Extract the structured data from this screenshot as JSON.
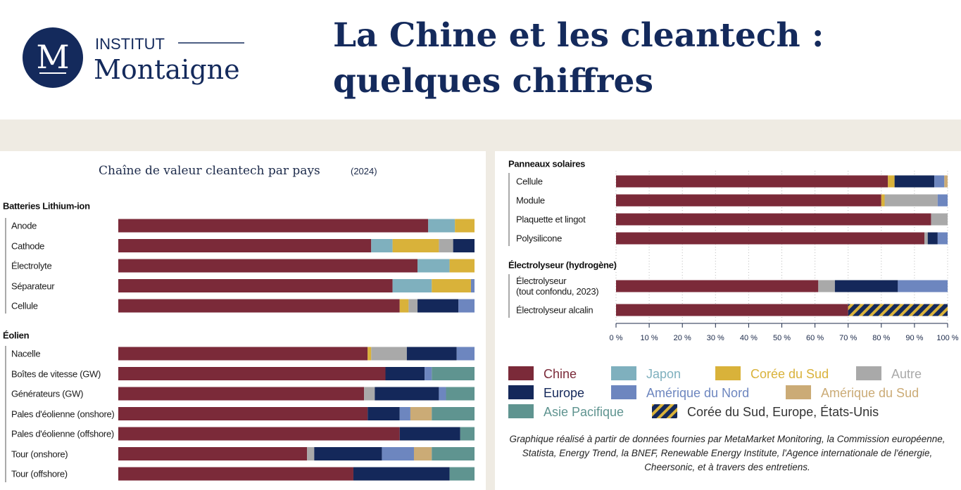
{
  "header": {
    "logo_letter": "M",
    "logo_top": "INSTITUT",
    "logo_bottom": "Montaigne",
    "title_line1": "La Chine et les cleantech :",
    "title_line2": "quelques chiffres"
  },
  "chart_data": {
    "type": "bar",
    "orientation": "horizontal",
    "stacked": true,
    "title": "Chaîne de valeur cleantech par pays",
    "subtitle": "(2024)",
    "groups": [
      {
        "name": "Batteries Lithium-ion",
        "categories": [
          "Anode",
          "Cathode",
          "Électrolyte",
          "Séparateur",
          "Cellule"
        ]
      },
      {
        "name": "Éolien",
        "categories": [
          "Nacelle",
          "Boîtes de vitesse (GW)",
          "Générateurs (GW)",
          "Pales d'éolienne (onshore)",
          "Pales d'éolienne (offshore)",
          "Tour (onshore)",
          "Tour (offshore)"
        ]
      },
      {
        "name": "Panneaux solaires",
        "categories": [
          "Cellule",
          "Module",
          "Plaquette et lingot",
          "Polysilicone"
        ]
      },
      {
        "name": "Électrolyseur (hydrogène)",
        "categories": [
          "Électrolyseur\n(tout confondu, 2023)",
          "Électrolyseur alcalin"
        ]
      }
    ],
    "series": [
      {
        "name": "Chine",
        "color": "#7b2a39",
        "values": [
          87,
          71,
          84,
          77,
          79,
          70,
          75,
          69,
          70,
          79,
          53,
          66,
          82,
          80,
          95,
          93,
          61,
          70
        ]
      },
      {
        "name": "Japon",
        "color": "#7fb0be",
        "values": [
          7.5,
          6,
          9,
          11,
          0,
          0,
          0,
          0,
          0,
          0,
          0,
          0,
          0,
          0,
          0,
          0,
          0,
          0
        ]
      },
      {
        "name": "Corée du Sud",
        "color": "#d9b23a",
        "values": [
          5.5,
          13,
          7,
          11,
          2.5,
          1,
          0,
          0,
          0,
          0,
          0,
          0,
          2,
          1,
          0,
          0,
          0,
          0
        ]
      },
      {
        "name": "Autre",
        "color": "#a9a9a9",
        "values": [
          0,
          4,
          0,
          0,
          2.5,
          10,
          0,
          3,
          0,
          0,
          2,
          0,
          0,
          16,
          5,
          1,
          5,
          0
        ]
      },
      {
        "name": "Europe",
        "color": "#14285a",
        "values": [
          0,
          6,
          0,
          0,
          11.5,
          14,
          11,
          18,
          9,
          17,
          19,
          27,
          12,
          0,
          0,
          3,
          19,
          0
        ]
      },
      {
        "name": "Amérique du Nord",
        "color": "#6d86bf",
        "values": [
          0,
          0,
          0,
          1,
          4.5,
          5,
          2,
          2,
          3,
          0,
          9,
          0,
          3,
          3,
          0,
          3,
          15,
          0
        ]
      },
      {
        "name": "Amérique du Sud",
        "color": "#cbab76",
        "values": [
          0,
          0,
          0,
          0,
          0,
          0,
          0,
          0,
          6,
          0,
          5,
          0,
          1,
          0,
          0,
          0,
          0,
          0
        ]
      },
      {
        "name": "Asie Pacifique",
        "color": "#5f9490",
        "values": [
          0,
          0,
          0,
          0,
          0,
          0,
          12,
          8,
          12,
          4,
          12,
          7,
          0,
          0,
          0,
          0,
          0,
          0
        ]
      },
      {
        "name": "Corée du Sud, Europe, États-Unis",
        "color": "#14285a",
        "hatch_color": "#d9b23a",
        "values": [
          0,
          0,
          0,
          0,
          0,
          0,
          0,
          0,
          0,
          0,
          0,
          0,
          0,
          0,
          0,
          0,
          0,
          30
        ]
      }
    ],
    "xlim": [
      0,
      100
    ],
    "xticks": [
      {
        "value": 0,
        "label": "0 %"
      },
      {
        "value": 10,
        "label": "10 %"
      },
      {
        "value": 20,
        "label": "20 %"
      },
      {
        "value": 30,
        "label": "30 %"
      },
      {
        "value": 40,
        "label": "40 %"
      },
      {
        "value": 50,
        "label": "50 %"
      },
      {
        "value": 60,
        "label": "60 %"
      },
      {
        "value": 70,
        "label": "70 %"
      },
      {
        "value": 80,
        "label": "80 %"
      },
      {
        "value": 90,
        "label": "90 %"
      },
      {
        "value": 100,
        "label": "100 %"
      }
    ],
    "source": "Graphique réalisé à partir de données fournies par MetaMarket Monitoring, la Commission européenne, Statista, Energy Trend, la BNEF, Renewable Energy Institute, l'Agence internationale de l'énergie, Cheersonic, et à travers des entretiens."
  }
}
